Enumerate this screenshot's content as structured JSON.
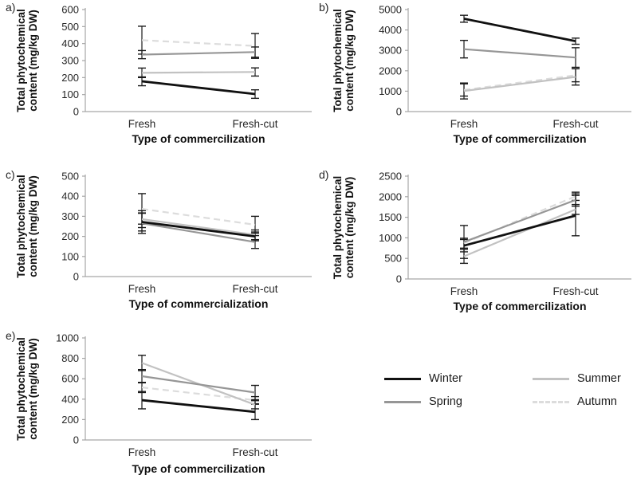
{
  "chart_data": [
    {
      "id": "a",
      "panel_label": "a)",
      "type": "line",
      "xlabel": "Type of commercilization",
      "ylabel": "Total phytochemical content (mg/kg DW)",
      "categories": [
        "Fresh",
        "Fresh-cut"
      ],
      "ylim": [
        0,
        600
      ],
      "ytick_step": 100,
      "grid": false,
      "error_bars": true,
      "series": [
        {
          "name": "Winter",
          "values": [
            178,
            103
          ],
          "err": [
            26,
            25
          ]
        },
        {
          "name": "Spring",
          "values": [
            335,
            350
          ],
          "err": [
            24,
            30
          ]
        },
        {
          "name": "Summer",
          "values": [
            228,
            233
          ],
          "err": [
            28,
            24
          ]
        },
        {
          "name": "Autumn",
          "values": [
            420,
            386
          ],
          "err": [
            82,
            73
          ]
        }
      ]
    },
    {
      "id": "b",
      "panel_label": "b)",
      "type": "line",
      "xlabel": "Type of commercilization",
      "ylabel": "Total phytochemical content (mg/kg DW)",
      "categories": [
        "Fresh",
        "Fresh-cut"
      ],
      "ylim": [
        0,
        5000
      ],
      "ytick_step": 1000,
      "grid": false,
      "error_bars": true,
      "series": [
        {
          "name": "Winter",
          "values": [
            4550,
            3450
          ],
          "err": [
            170,
            150
          ]
        },
        {
          "name": "Spring",
          "values": [
            3060,
            2650
          ],
          "err": [
            430,
            480
          ]
        },
        {
          "name": "Summer",
          "values": [
            1010,
            1700
          ],
          "err": [
            390,
            400
          ]
        },
        {
          "name": "Autumn",
          "values": [
            1060,
            1780
          ],
          "err": [
            300,
            320
          ]
        }
      ]
    },
    {
      "id": "c",
      "panel_label": "c)",
      "type": "line",
      "xlabel": "Type of commercialization",
      "ylabel": "Total phytochemical content (mg/kg DW)",
      "categories": [
        "Fresh",
        "Fresh-cut"
      ],
      "ylim": [
        0,
        500
      ],
      "ytick_step": 100,
      "grid": false,
      "error_bars": true,
      "series": [
        {
          "name": "Winter",
          "values": [
            272,
            200
          ],
          "err": [
            45,
            22
          ]
        },
        {
          "name": "Spring",
          "values": [
            265,
            172
          ],
          "err": [
            50,
            32
          ]
        },
        {
          "name": "Summer",
          "values": [
            286,
            208
          ],
          "err": [
            42,
            24
          ]
        },
        {
          "name": "Autumn",
          "values": [
            337,
            258
          ],
          "err": [
            76,
            42
          ]
        }
      ]
    },
    {
      "id": "d",
      "panel_label": "d)",
      "type": "line",
      "xlabel": "Type of commercilization",
      "ylabel": "Total phytochemical content (mg/kg DW)",
      "categories": [
        "Fresh",
        "Fresh-cut"
      ],
      "ylim": [
        0,
        2500
      ],
      "ytick_step": 500,
      "grid": false,
      "error_bars": true,
      "series": [
        {
          "name": "Winter",
          "values": [
            810,
            1540
          ],
          "err": [
            150,
            490
          ]
        },
        {
          "name": "Spring",
          "values": [
            900,
            1920
          ],
          "err": [
            400,
            150
          ]
        },
        {
          "name": "Summer",
          "values": [
            550,
            1690
          ],
          "err": [
            170,
            120
          ]
        },
        {
          "name": "Autumn",
          "values": [
            870,
            2010
          ],
          "err": [
            120,
            100
          ]
        }
      ]
    },
    {
      "id": "e",
      "panel_label": "e)",
      "type": "line",
      "xlabel": "Type of commercilization",
      "ylabel": "Total phytochemical content (mg/kg DW)",
      "categories": [
        "Fresh",
        "Fresh-cut"
      ],
      "ylim": [
        0,
        1000
      ],
      "ytick_step": 200,
      "grid": false,
      "error_bars": true,
      "series": [
        {
          "name": "Winter",
          "values": [
            390,
            275
          ],
          "err": [
            85,
            75
          ]
        },
        {
          "name": "Spring",
          "values": [
            625,
            465
          ],
          "err": [
            65,
            70
          ]
        },
        {
          "name": "Summer",
          "values": [
            755,
            345
          ],
          "err": [
            75,
            40
          ]
        },
        {
          "name": "Autumn",
          "values": [
            515,
            390
          ],
          "err": [
            50,
            35
          ]
        }
      ]
    }
  ],
  "series_styles": {
    "Winter": {
      "color": "#111111",
      "width": 2.8,
      "dash": null
    },
    "Spring": {
      "color": "#969696",
      "width": 2.2,
      "dash": null
    },
    "Summer": {
      "color": "#c2c2c2",
      "width": 2.2,
      "dash": null
    },
    "Autumn": {
      "color": "#dcdcdc",
      "width": 2.2,
      "dash": "8 5"
    }
  },
  "error_bar_color": "#1a1a1a",
  "axis_color": "#a6a6a6",
  "legend": {
    "position": "bottom-right",
    "items": [
      {
        "label": "Winter",
        "color": "#111111",
        "dash": false
      },
      {
        "label": "Spring",
        "color": "#969696",
        "dash": false
      },
      {
        "label": "Summer",
        "color": "#c2c2c2",
        "dash": false
      },
      {
        "label": "Autumn",
        "color": "#dcdcdc",
        "dash": true
      }
    ]
  }
}
